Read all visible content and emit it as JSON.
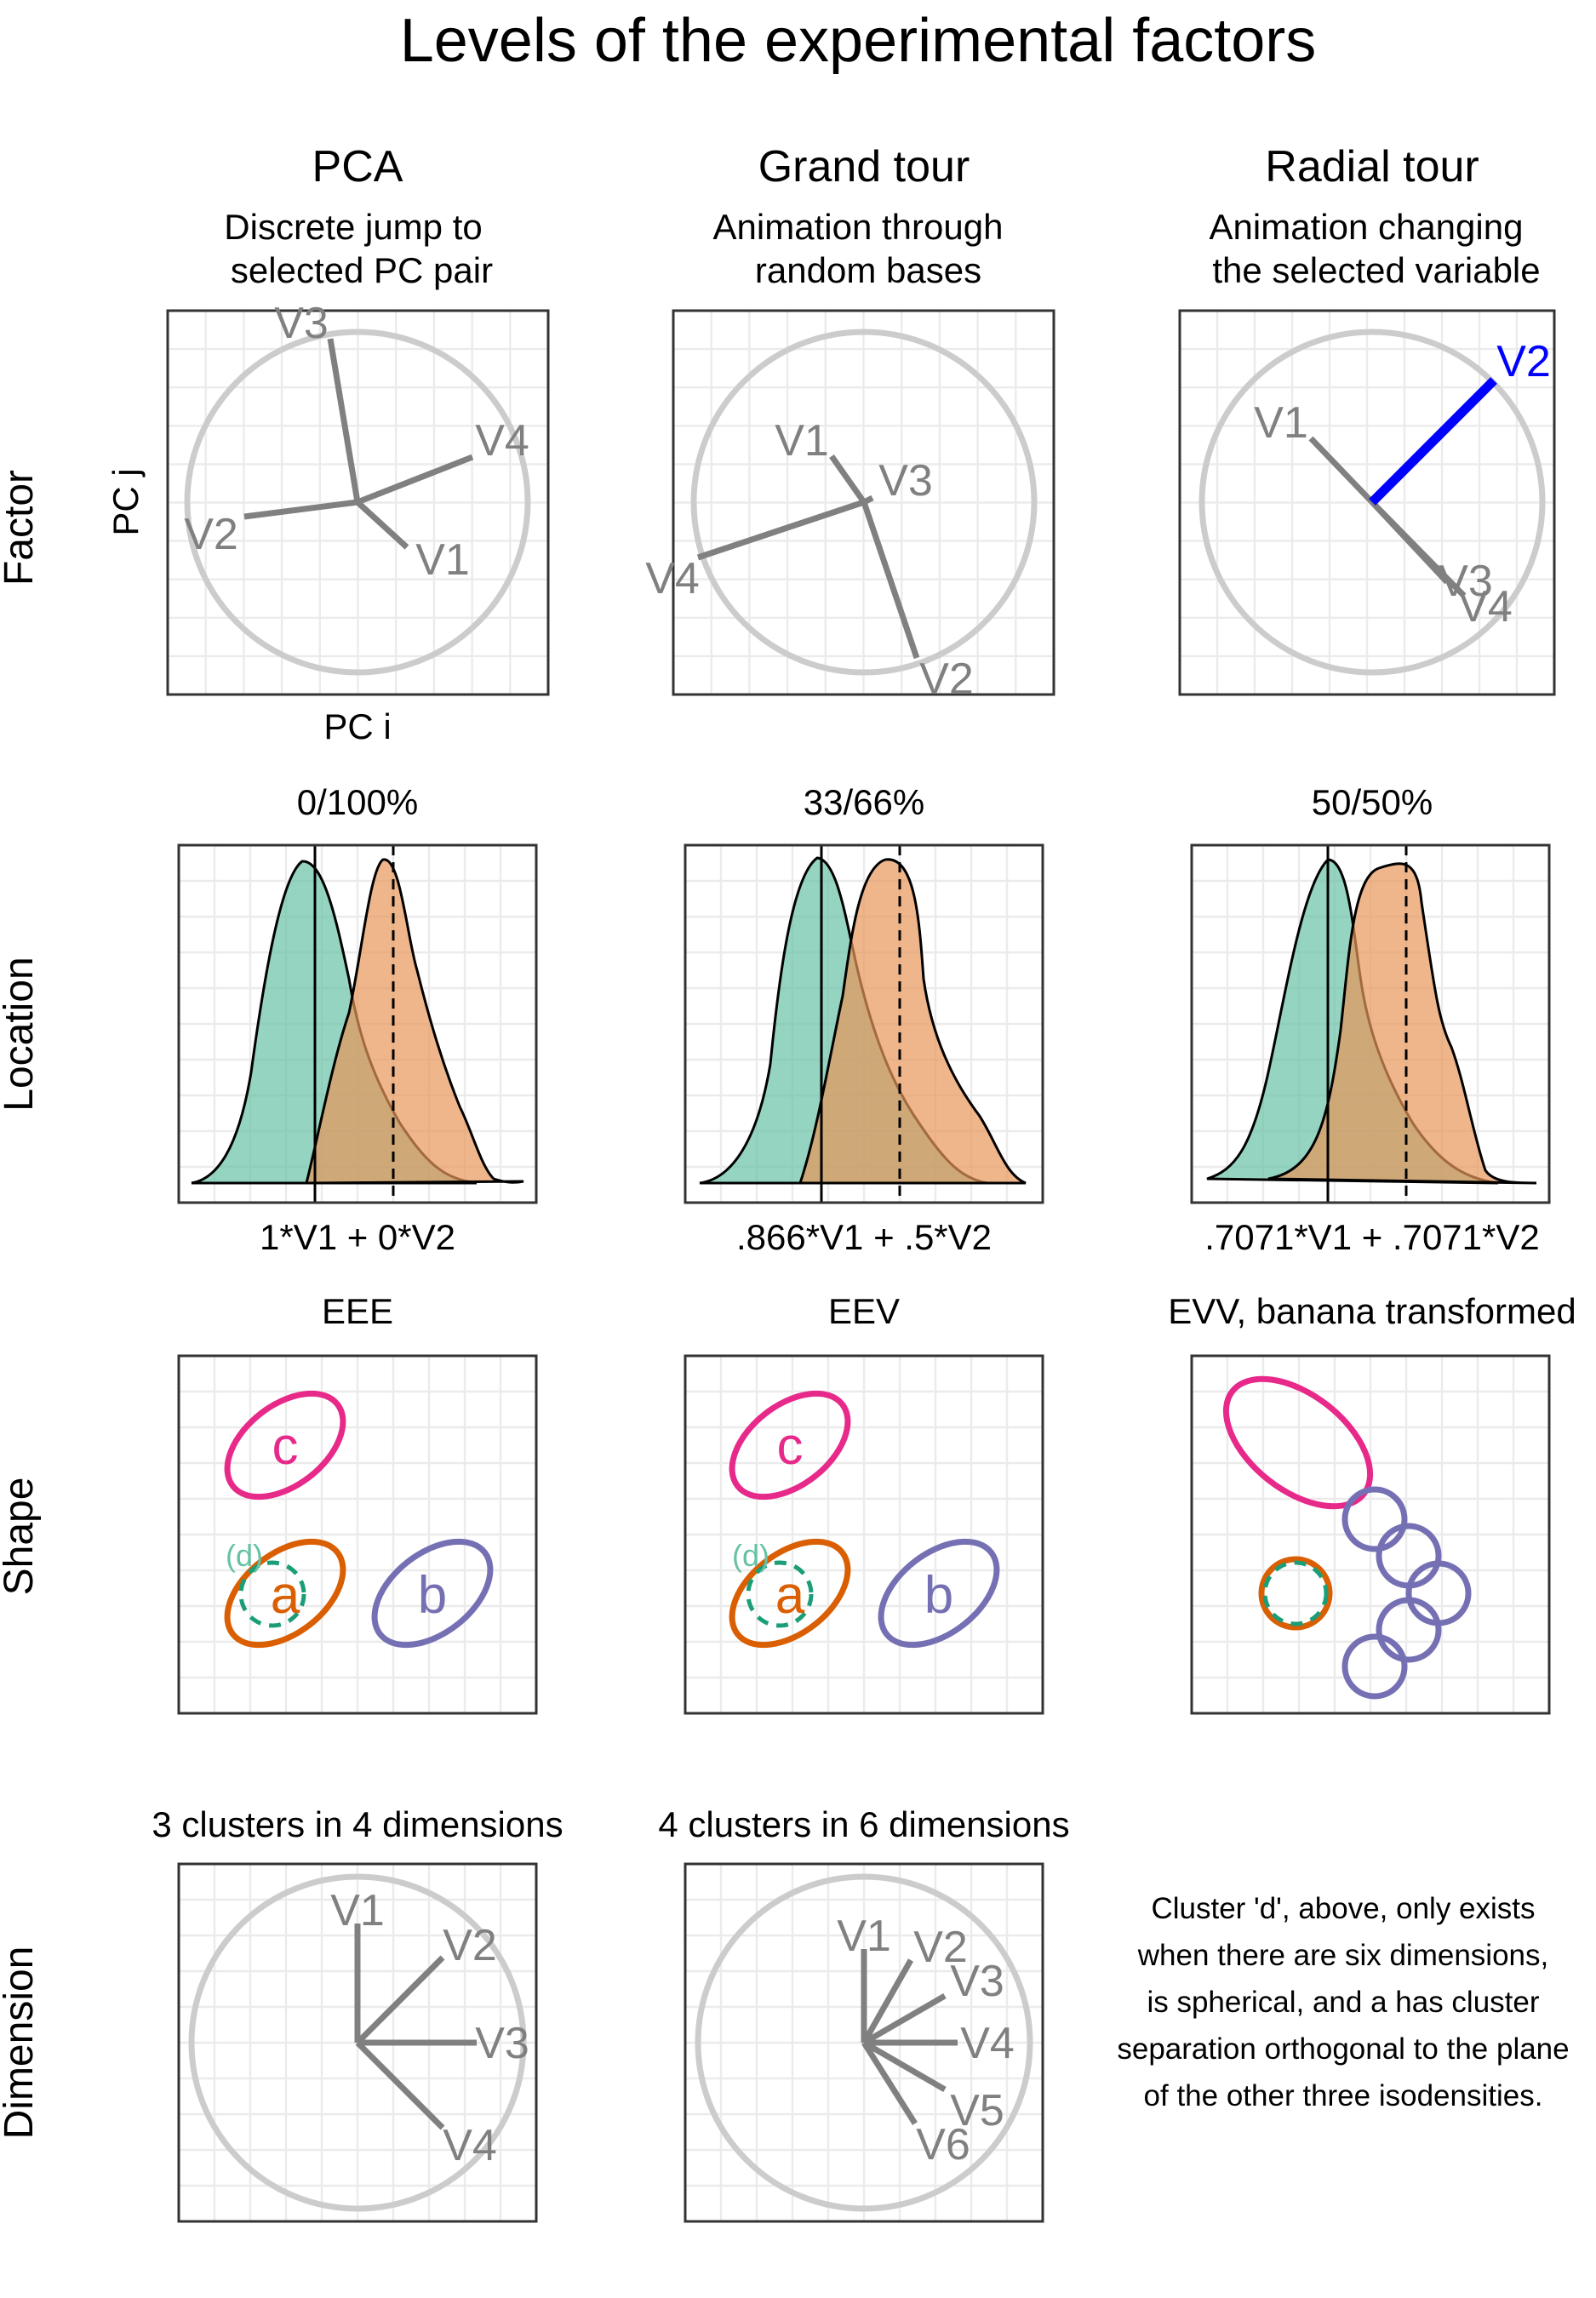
{
  "title": "Levels of the experimental factors",
  "rows": {
    "factor": "Factor",
    "location": "Location",
    "shape": "Shape",
    "dimension": "Dimension"
  },
  "factor": {
    "pca": {
      "title": "PCA",
      "sub1": "Discrete jump to",
      "sub2": "selected PC pair",
      "ylabel": "PC j",
      "xlabel": "PC i",
      "axes": [
        "V3",
        "V4",
        "V2",
        "V1"
      ]
    },
    "grand": {
      "title": "Grand tour",
      "sub1": "Animation through",
      "sub2": "random bases",
      "axes": [
        "V1",
        "V3",
        "V4",
        "V2"
      ]
    },
    "radial": {
      "title": "Radial tour",
      "sub1": "Animation changing",
      "sub2": "the selected variable",
      "axes": [
        "V2",
        "V1",
        "V3",
        "V4"
      ],
      "highlight_color": "#0000ff"
    }
  },
  "location": {
    "panels": [
      {
        "title": "0/100%",
        "xlabel": "1*V1 + 0*V2"
      },
      {
        "title": "33/66%",
        "xlabel": ".866*V1 + .5*V2"
      },
      {
        "title": "50/50%",
        "xlabel": ".7071*V1 + .7071*V2"
      }
    ],
    "colors": {
      "cluster_a": "#66c2a5",
      "cluster_b": "#e8955a"
    }
  },
  "shape": {
    "panels": [
      {
        "title": "EEE",
        "labels": {
          "c": "c",
          "d": "(d)",
          "a": "a",
          "b": "b"
        }
      },
      {
        "title": "EEV",
        "labels": {
          "c": "c",
          "d": "(d)",
          "a": "a",
          "b": "b"
        }
      },
      {
        "title": "EVV, banana transformed"
      }
    ],
    "colors": {
      "c": "#e7298a",
      "a": "#d95f02",
      "b": "#7570b3",
      "d": "#1b9e77"
    }
  },
  "dimension": {
    "panels": [
      {
        "title": "3 clusters in 4 dimensions",
        "axes": [
          "V1",
          "V2",
          "V3",
          "V4"
        ]
      },
      {
        "title": "4 clusters in 6 dimensions",
        "axes": [
          "V1",
          "V2",
          "V3",
          "V4",
          "V5",
          "V6"
        ]
      }
    ],
    "note": [
      "Cluster 'd', above, only exists",
      "when there are six dimensions,",
      "is spherical, and a has cluster",
      "separation orthogonal to the plane",
      "of the other three isodensities."
    ]
  }
}
